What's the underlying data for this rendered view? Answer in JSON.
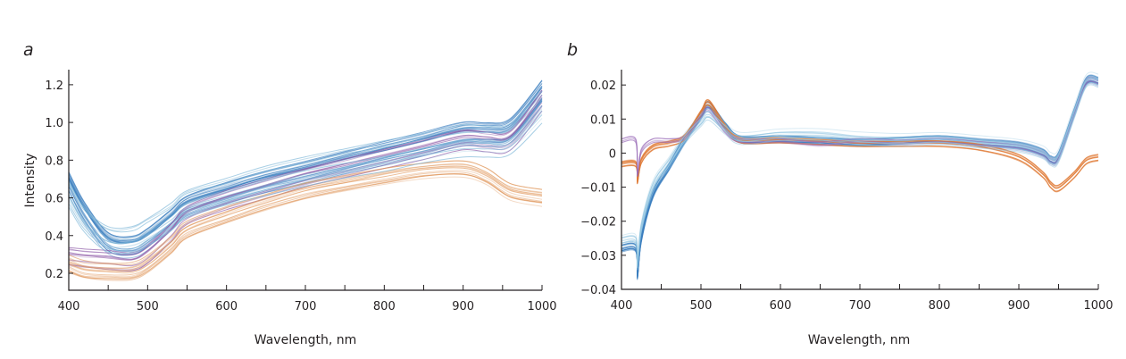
{
  "chart_data": [
    {
      "panel": "a",
      "type": "line",
      "title": "",
      "xlabel": "Wavelength, nm",
      "ylabel": "Intensity",
      "xlim": [
        400,
        1000
      ],
      "ylim": [
        0.11,
        1.28
      ],
      "xticks": [
        400,
        500,
        600,
        700,
        800,
        900,
        1000
      ],
      "xtick_labels": [
        "400",
        "500",
        "600",
        "700",
        "800",
        "900",
        "1000"
      ],
      "yticks": [
        0.2,
        0.4,
        0.6,
        0.8,
        1.0,
        1.2
      ],
      "ytick_labels": [
        "0.2",
        "0.4",
        "0.6",
        "0.8",
        "1.0",
        "1.2"
      ],
      "grid": false,
      "legend": "none",
      "x": [
        400,
        420,
        450,
        480,
        500,
        530,
        550,
        600,
        650,
        700,
        750,
        800,
        850,
        900,
        930,
        960,
        1000
      ],
      "series": [
        {
          "name": "group-blue",
          "color": "#3a7ebf",
          "count": 22,
          "spread": 0.06,
          "values": [
            0.68,
            0.52,
            0.36,
            0.34,
            0.38,
            0.48,
            0.55,
            0.62,
            0.68,
            0.73,
            0.78,
            0.83,
            0.88,
            0.93,
            0.93,
            0.95,
            1.15
          ]
        },
        {
          "name": "group-purple",
          "color": "#8e5ba8",
          "count": 12,
          "spread": 0.05,
          "values": [
            0.29,
            0.28,
            0.27,
            0.26,
            0.3,
            0.42,
            0.51,
            0.59,
            0.65,
            0.71,
            0.76,
            0.81,
            0.86,
            0.91,
            0.9,
            0.91,
            1.12
          ]
        },
        {
          "name": "group-orange",
          "color": "#e0965a",
          "count": 14,
          "spread": 0.05,
          "values": [
            0.25,
            0.22,
            0.21,
            0.21,
            0.25,
            0.35,
            0.43,
            0.51,
            0.58,
            0.64,
            0.68,
            0.72,
            0.75,
            0.76,
            0.72,
            0.64,
            0.61
          ]
        },
        {
          "name": "group-lightblue",
          "color": "#7fb8d8",
          "count": 10,
          "spread": 0.07,
          "values": [
            0.62,
            0.48,
            0.38,
            0.38,
            0.42,
            0.5,
            0.57,
            0.63,
            0.69,
            0.74,
            0.78,
            0.82,
            0.86,
            0.9,
            0.9,
            0.91,
            1.08
          ]
        }
      ]
    },
    {
      "panel": "b",
      "type": "line",
      "title": "",
      "xlabel": "Wavelength, nm",
      "ylabel": "",
      "xlim": [
        400,
        1000
      ],
      "ylim": [
        -0.04,
        0.0245
      ],
      "xticks": [
        400,
        500,
        600,
        700,
        800,
        900,
        1000
      ],
      "xtick_labels": [
        "400",
        "500",
        "600",
        "700",
        "800",
        "900",
        "1000"
      ],
      "yticks": [
        -0.04,
        -0.03,
        -0.02,
        -0.01,
        0,
        0.01,
        0.02
      ],
      "ytick_labels": [
        "−0.04",
        "−0.03",
        "−0.02",
        "−0.01",
        "0",
        "0.01",
        "0.02"
      ],
      "grid": false,
      "legend": "none",
      "x": [
        400,
        418,
        420,
        425,
        440,
        460,
        480,
        500,
        510,
        530,
        550,
        600,
        650,
        700,
        750,
        800,
        850,
        900,
        930,
        940,
        950,
        970,
        985,
        1000
      ],
      "series": [
        {
          "name": "group-blue",
          "color": "#3a7ebf",
          "count": 16,
          "spread": 0.0012,
          "values": [
            -0.028,
            -0.028,
            -0.036,
            -0.025,
            -0.012,
            -0.004,
            0.004,
            0.011,
            0.014,
            0.008,
            0.004,
            0.004,
            0.0035,
            0.003,
            0.0035,
            0.004,
            0.003,
            0.002,
            0.0,
            -0.002,
            -0.001,
            0.012,
            0.021,
            0.021
          ]
        },
        {
          "name": "group-orange",
          "color": "#e07a35",
          "count": 12,
          "spread": 0.001,
          "values": [
            -0.003,
            -0.003,
            -0.008,
            -0.002,
            0.002,
            0.003,
            0.005,
            0.012,
            0.015,
            0.008,
            0.004,
            0.004,
            0.0035,
            0.003,
            0.003,
            0.003,
            0.002,
            -0.001,
            -0.006,
            -0.009,
            -0.01,
            -0.006,
            -0.002,
            -0.001
          ]
        },
        {
          "name": "group-purple",
          "color": "#9a6cb8",
          "count": 6,
          "spread": 0.0015,
          "values": [
            0.004,
            0.004,
            -0.006,
            0.001,
            0.004,
            0.004,
            0.005,
            0.011,
            0.013,
            0.007,
            0.004,
            0.004,
            0.003,
            0.004,
            0.0035,
            0.004,
            0.003,
            0.002,
            0.0,
            -0.002,
            -0.001,
            0.012,
            0.021,
            0.021
          ]
        },
        {
          "name": "group-lightblue",
          "color": "#8fc3e0",
          "count": 10,
          "spread": 0.002,
          "values": [
            -0.026,
            -0.026,
            -0.033,
            -0.022,
            -0.01,
            -0.003,
            0.004,
            0.009,
            0.011,
            0.007,
            0.004,
            0.005,
            0.005,
            0.004,
            0.0035,
            0.004,
            0.003,
            0.002,
            0.0,
            -0.002,
            -0.001,
            0.012,
            0.021,
            0.021
          ]
        }
      ]
    }
  ]
}
